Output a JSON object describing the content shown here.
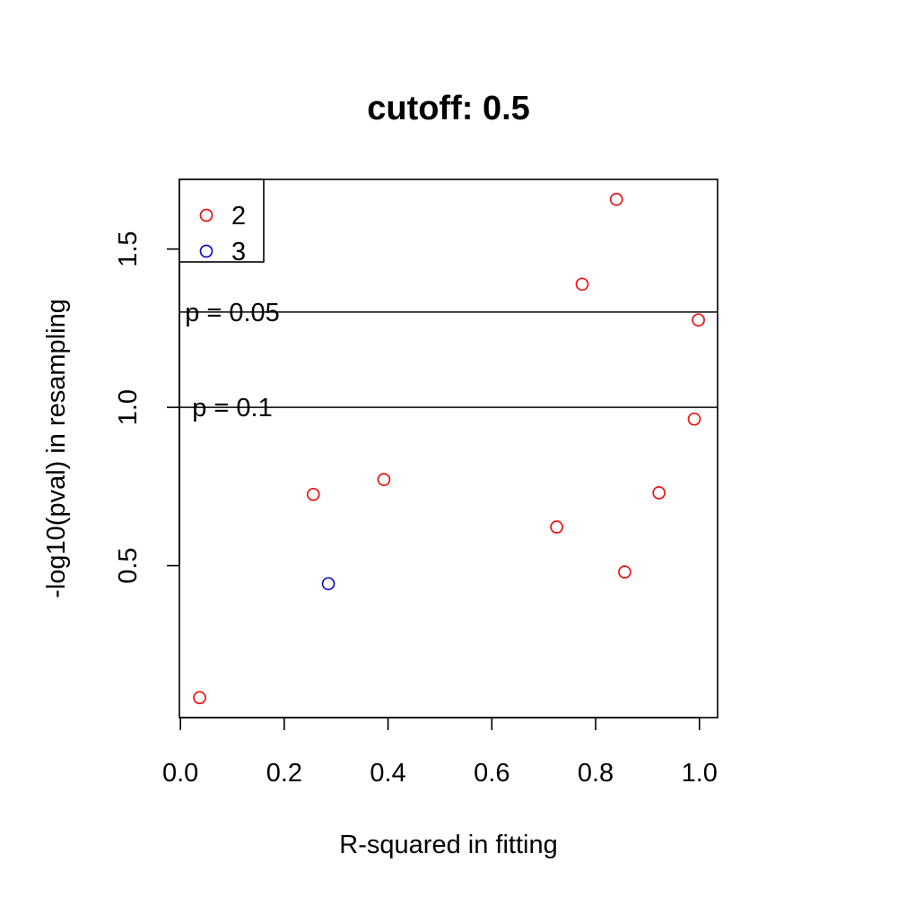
{
  "chart_data": {
    "type": "scatter",
    "title": "cutoff: 0.5",
    "xlabel": "R-squared in fitting",
    "ylabel": "-log10(pval) in resampling",
    "xlim": [
      -0.002,
      1.035
    ],
    "ylim": [
      0.02,
      1.72
    ],
    "x_ticks": [
      0.0,
      0.2,
      0.4,
      0.6,
      0.8,
      1.0
    ],
    "x_tick_labels": [
      "0.0",
      "0.2",
      "0.4",
      "0.6",
      "0.8",
      "1.0"
    ],
    "y_ticks": [
      0.5,
      1.0,
      1.5
    ],
    "y_tick_labels": [
      "0.5",
      "1.0",
      "1.5"
    ],
    "grid": false,
    "legend_placement": "top-left",
    "series": [
      {
        "name": "2",
        "color": "#ee1111",
        "points": [
          {
            "x": 0.037,
            "y": 0.083
          },
          {
            "x": 0.256,
            "y": 0.725
          },
          {
            "x": 0.392,
            "y": 0.772
          },
          {
            "x": 0.725,
            "y": 0.622
          },
          {
            "x": 0.774,
            "y": 1.389
          },
          {
            "x": 0.84,
            "y": 1.657
          },
          {
            "x": 0.856,
            "y": 0.48
          },
          {
            "x": 0.922,
            "y": 0.73
          },
          {
            "x": 0.99,
            "y": 0.963
          },
          {
            "x": 0.998,
            "y": 1.276
          }
        ]
      },
      {
        "name": "3",
        "color": "#1111cc",
        "points": [
          {
            "x": 0.285,
            "y": 0.443
          }
        ]
      }
    ],
    "reference_lines": [
      {
        "y": 1.301,
        "label": "p = 0.05"
      },
      {
        "y": 1.0,
        "label": "p = 0.1"
      }
    ]
  }
}
